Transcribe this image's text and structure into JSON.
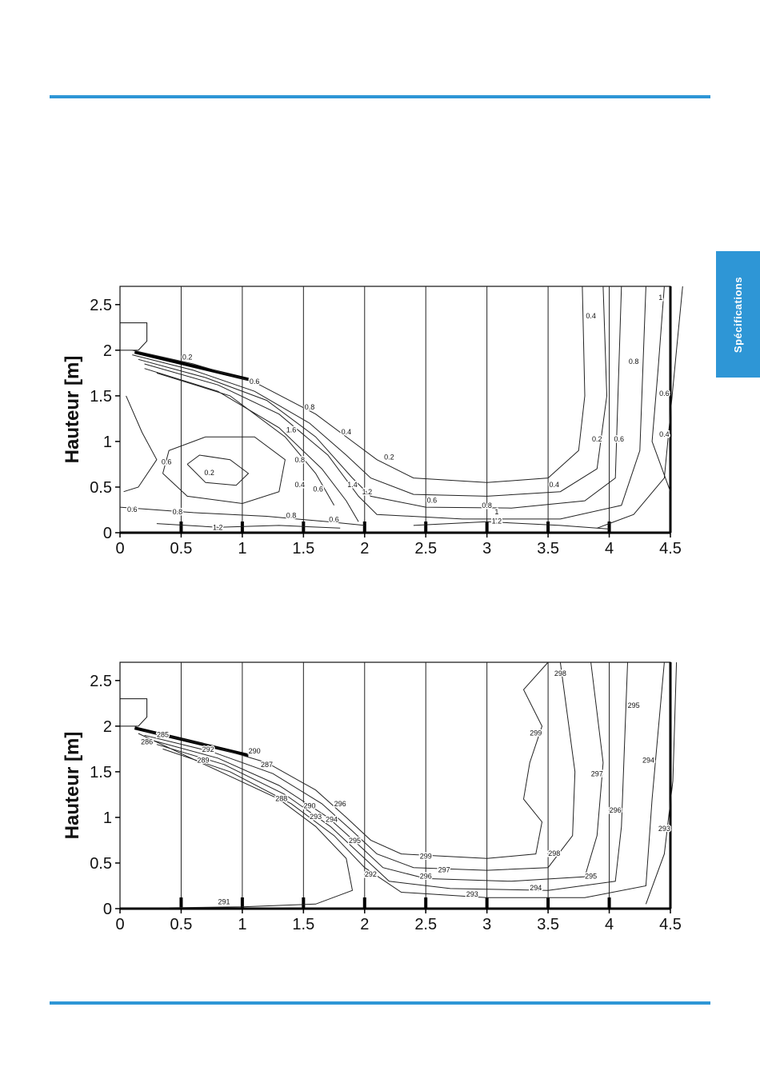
{
  "page": {
    "accent_color": "#2e96d6",
    "side_tab_label": "Spécifications"
  },
  "chart_data": [
    {
      "type": "contour",
      "ylabel": "Hauteur [m]",
      "xlabel": "",
      "xlim": [
        0,
        4.5
      ],
      "ylim": [
        0,
        2.7
      ],
      "x_ticks": [
        "0",
        "0.5",
        "1",
        "1.5",
        "2",
        "2.5",
        "3",
        "3.5",
        "4",
        "4.5"
      ],
      "y_ticks": [
        "0",
        "0.5",
        "1",
        "1.5",
        "2",
        "2.5"
      ],
      "vertical_lines": [
        0.5,
        1,
        1.5,
        2,
        2.5,
        3,
        3.5,
        4
      ],
      "contour_labels": [
        {
          "text": "0.2",
          "x": 0.55,
          "y": 1.9
        },
        {
          "text": "0.6",
          "x": 1.1,
          "y": 1.63
        },
        {
          "text": "0.8",
          "x": 1.55,
          "y": 1.35
        },
        {
          "text": "0.4",
          "x": 1.85,
          "y": 1.08
        },
        {
          "text": "0.2",
          "x": 2.2,
          "y": 0.8
        },
        {
          "text": "1.6",
          "x": 1.4,
          "y": 1.1
        },
        {
          "text": "0.8",
          "x": 1.47,
          "y": 0.77
        },
        {
          "text": "0.6",
          "x": 1.62,
          "y": 0.45
        },
        {
          "text": "0.4",
          "x": 1.47,
          "y": 0.5
        },
        {
          "text": "1.4",
          "x": 1.9,
          "y": 0.5
        },
        {
          "text": "1.2",
          "x": 2.02,
          "y": 0.42
        },
        {
          "text": "0.2",
          "x": 0.73,
          "y": 0.63
        },
        {
          "text": "0.6",
          "x": 0.38,
          "y": 0.75
        },
        {
          "text": "0.6",
          "x": 0.1,
          "y": 0.23
        },
        {
          "text": "0.8",
          "x": 0.47,
          "y": 0.2
        },
        {
          "text": "1.2",
          "x": 0.8,
          "y": 0.03
        },
        {
          "text": "0.8",
          "x": 1.4,
          "y": 0.16
        },
        {
          "text": "0.6",
          "x": 1.75,
          "y": 0.12
        },
        {
          "text": "0.6",
          "x": 2.55,
          "y": 0.33
        },
        {
          "text": "0.8",
          "x": 3.0,
          "y": 0.27
        },
        {
          "text": "1",
          "x": 3.08,
          "y": 0.2
        },
        {
          "text": "1.2",
          "x": 3.08,
          "y": 0.1
        },
        {
          "text": "0.4",
          "x": 3.55,
          "y": 0.5
        },
        {
          "text": "0.2",
          "x": 3.9,
          "y": 1.0
        },
        {
          "text": "0.4",
          "x": 3.85,
          "y": 2.35
        },
        {
          "text": "0.8",
          "x": 4.2,
          "y": 1.85
        },
        {
          "text": "0.6",
          "x": 4.08,
          "y": 1.0
        },
        {
          "text": "1",
          "x": 4.42,
          "y": 2.55
        },
        {
          "text": "0.6",
          "x": 4.45,
          "y": 1.5
        },
        {
          "text": "0.4",
          "x": 4.45,
          "y": 1.05
        }
      ]
    },
    {
      "type": "contour",
      "ylabel": "Hauteur [m]",
      "xlabel": "",
      "xlim": [
        0,
        4.5
      ],
      "ylim": [
        0,
        2.7
      ],
      "x_ticks": [
        "0",
        "0.5",
        "1",
        "1.5",
        "2",
        "2.5",
        "3",
        "3.5",
        "4",
        "4.5"
      ],
      "y_ticks": [
        "0",
        "0.5",
        "1",
        "1.5",
        "2",
        "2.5"
      ],
      "vertical_lines": [
        0.5,
        1,
        1.5,
        2,
        2.5,
        3,
        3.5,
        4
      ],
      "contour_labels": [
        {
          "text": "285",
          "x": 0.35,
          "y": 1.88
        },
        {
          "text": "286",
          "x": 0.22,
          "y": 1.8
        },
        {
          "text": "289",
          "x": 0.68,
          "y": 1.6
        },
        {
          "text": "292",
          "x": 0.72,
          "y": 1.72
        },
        {
          "text": "290",
          "x": 1.1,
          "y": 1.7
        },
        {
          "text": "287",
          "x": 1.2,
          "y": 1.55
        },
        {
          "text": "288",
          "x": 1.32,
          "y": 1.18
        },
        {
          "text": "290",
          "x": 1.55,
          "y": 1.1
        },
        {
          "text": "293",
          "x": 1.6,
          "y": 0.98
        },
        {
          "text": "296",
          "x": 1.8,
          "y": 1.12
        },
        {
          "text": "294",
          "x": 1.73,
          "y": 0.95
        },
        {
          "text": "295",
          "x": 1.92,
          "y": 0.72
        },
        {
          "text": "292",
          "x": 2.05,
          "y": 0.35
        },
        {
          "text": "299",
          "x": 2.5,
          "y": 0.55
        },
        {
          "text": "297",
          "x": 2.65,
          "y": 0.4
        },
        {
          "text": "296",
          "x": 2.5,
          "y": 0.33
        },
        {
          "text": "293",
          "x": 2.88,
          "y": 0.13
        },
        {
          "text": "294",
          "x": 3.4,
          "y": 0.2
        },
        {
          "text": "295",
          "x": 3.85,
          "y": 0.33
        },
        {
          "text": "298",
          "x": 3.55,
          "y": 0.58
        },
        {
          "text": "298",
          "x": 3.6,
          "y": 2.55
        },
        {
          "text": "299",
          "x": 3.4,
          "y": 1.9
        },
        {
          "text": "297",
          "x": 3.9,
          "y": 1.45
        },
        {
          "text": "296",
          "x": 4.05,
          "y": 1.05
        },
        {
          "text": "295",
          "x": 4.2,
          "y": 2.2
        },
        {
          "text": "294",
          "x": 4.32,
          "y": 1.6
        },
        {
          "text": "293",
          "x": 4.45,
          "y": 0.85
        },
        {
          "text": "291",
          "x": 0.85,
          "y": 0.05
        }
      ]
    }
  ]
}
